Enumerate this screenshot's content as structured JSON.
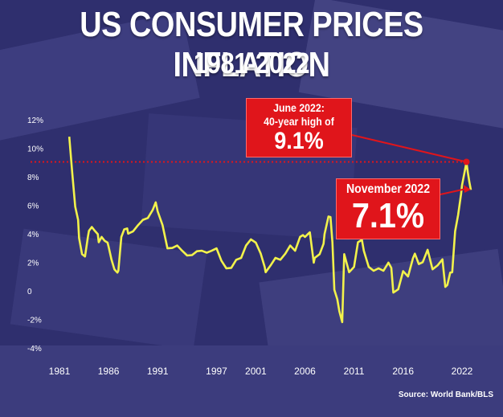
{
  "title": "US CONSUMER PRICES INFLATION",
  "subtitle": "1981-2022",
  "source": "Source: World Bank/BLS",
  "colors": {
    "line": "#f2f24b",
    "highlight": "#e0151b",
    "background": "#2f2f6e"
  },
  "callouts": {
    "june": {
      "line1": "June 2022:",
      "line2": "40-year high of",
      "value": "9.1%"
    },
    "november": {
      "line1": "November 2022",
      "value": "7.1%"
    }
  },
  "chart_data": {
    "type": "line",
    "title": "US CONSUMER PRICES INFLATION",
    "subtitle": "1981-2022",
    "ylim": [
      -4,
      12
    ],
    "xlim": [
      1981,
      2022.9
    ],
    "y_ticks": [
      "12%",
      "10%",
      "8%",
      "6%",
      "4%",
      "2%",
      "0",
      "-2%",
      "-4%"
    ],
    "x_ticks": [
      "1981",
      "1986",
      "1991",
      "1997",
      "2001",
      "2006",
      "2011",
      "2016",
      "2022"
    ],
    "reference_line": {
      "y": 9.1,
      "style": "dotted"
    },
    "series": [
      {
        "x": [
          1982.0,
          1982.3,
          1982.6,
          1982.9,
          1983.0,
          1983.3,
          1983.6,
          1983.9,
          1984.0,
          1984.3,
          1984.6,
          1984.9,
          1985.0,
          1985.3,
          1985.6,
          1985.9,
          1986.0,
          1986.3,
          1986.6,
          1986.9,
          1987.0,
          1987.3,
          1987.6,
          1987.9,
          1988.0,
          1988.5,
          1989.0,
          1989.5,
          1990.0,
          1990.5,
          1990.8,
          1991.0,
          1991.5,
          1992.0,
          1992.5,
          1993.0,
          1993.5,
          1994.0,
          1994.5,
          1995.0,
          1995.5,
          1996.0,
          1996.5,
          1997.0,
          1997.5,
          1998.0,
          1998.5,
          1999.0,
          1999.5,
          2000.0,
          2000.5,
          2001.0,
          2001.5,
          2001.9,
          2002.0,
          2002.5,
          2003.0,
          2003.5,
          2004.0,
          2004.5,
          2005.0,
          2005.5,
          2005.8,
          2006.0,
          2006.5,
          2006.9,
          2007.0,
          2007.5,
          2007.9,
          2008.0,
          2008.4,
          2008.6,
          2008.8,
          2009.0,
          2009.3,
          2009.5,
          2009.8,
          2010.0,
          2010.5,
          2011.0,
          2011.4,
          2011.8,
          2012.0,
          2012.5,
          2013.0,
          2013.5,
          2014.0,
          2014.5,
          2014.8,
          2015.0,
          2015.5,
          2016.0,
          2016.5,
          2017.0,
          2017.2,
          2017.6,
          2018.0,
          2018.5,
          2019.0,
          2019.5,
          2020.0,
          2020.3,
          2020.5,
          2020.8,
          2021.0,
          2021.3,
          2021.6,
          2021.9,
          2022.0,
          2022.3,
          2022.45,
          2022.6,
          2022.75,
          2022.9
        ],
        "y": [
          10.9,
          8.3,
          6.0,
          5.0,
          3.8,
          2.6,
          2.5,
          3.8,
          4.3,
          4.5,
          4.3,
          4.0,
          3.5,
          3.8,
          3.6,
          3.4,
          3.2,
          2.2,
          1.6,
          1.3,
          1.5,
          3.8,
          4.4,
          4.4,
          4.1,
          4.2,
          4.7,
          5.0,
          5.2,
          5.7,
          6.3,
          5.6,
          4.7,
          3.0,
          3.1,
          3.2,
          2.9,
          2.5,
          2.6,
          2.8,
          2.9,
          2.7,
          2.9,
          3.0,
          2.2,
          1.6,
          1.7,
          2.2,
          2.4,
          3.2,
          3.7,
          3.4,
          2.7,
          1.7,
          1.4,
          1.8,
          2.4,
          2.2,
          2.7,
          3.2,
          2.9,
          3.8,
          4.0,
          3.8,
          4.2,
          2.0,
          2.4,
          2.6,
          3.4,
          4.0,
          5.3,
          5.2,
          3.5,
          0.1,
          -0.5,
          -1.4,
          -2.1,
          2.6,
          1.4,
          1.7,
          3.5,
          3.6,
          2.9,
          1.7,
          1.5,
          1.6,
          1.5,
          2.0,
          1.7,
          -0.1,
          0.2,
          1.4,
          1.1,
          2.3,
          2.7,
          1.9,
          2.1,
          2.9,
          1.6,
          1.8,
          2.3,
          0.3,
          0.5,
          1.3,
          1.4,
          4.2,
          5.4,
          6.8,
          7.5,
          8.5,
          9.1,
          8.3,
          7.7,
          7.1
        ]
      }
    ],
    "annotations": [
      {
        "x": 2022.45,
        "y": 9.1,
        "text": "June 2022: 40-year high of 9.1%"
      },
      {
        "x": 2022.9,
        "y": 7.1,
        "text": "November 2022 7.1%"
      }
    ]
  }
}
